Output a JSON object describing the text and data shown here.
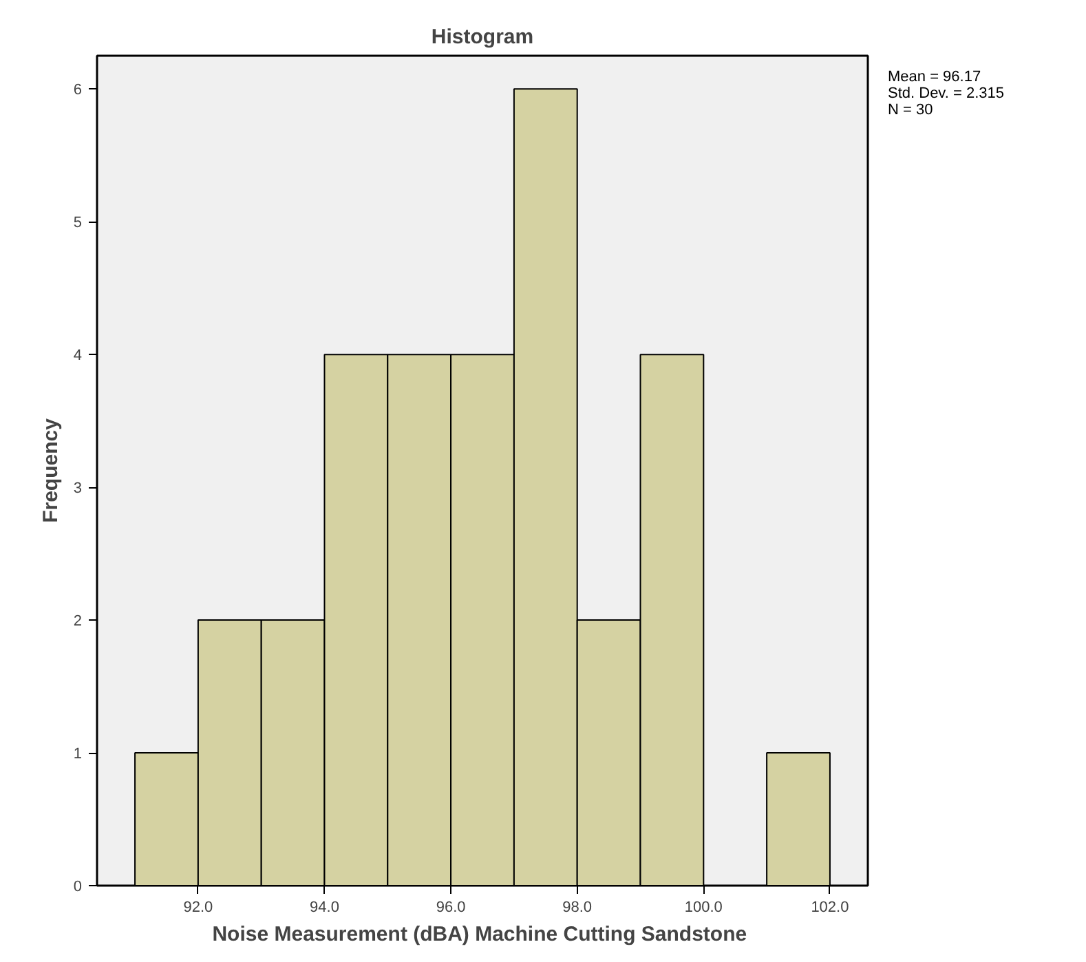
{
  "chart_data": {
    "type": "histogram",
    "title": "Histogram",
    "xlabel": "Noise Measurement (dBA) Machine Cutting  Sandstone",
    "ylabel": "Frequency",
    "bins": [
      91,
      92,
      93,
      94,
      95,
      96,
      97,
      98,
      99,
      100,
      101,
      102
    ],
    "values": [
      1,
      2,
      2,
      4,
      4,
      4,
      6,
      2,
      4,
      0,
      1
    ],
    "color": "#d5d2a2",
    "xlim": [
      90.4,
      102.6
    ],
    "ylim": [
      0,
      6.25
    ],
    "xticks": [
      {
        "value": 92,
        "label": "92.0"
      },
      {
        "value": 94,
        "label": "94.0"
      },
      {
        "value": 96,
        "label": "96.0"
      },
      {
        "value": 98,
        "label": "98.0"
      },
      {
        "value": 100,
        "label": "100.0"
      },
      {
        "value": 102,
        "label": "102.0"
      }
    ],
    "yticks": [
      0,
      1,
      2,
      3,
      4,
      5,
      6
    ],
    "grid": false,
    "annotations": [
      "Mean = 96.17\nStd. Dev. = 2.315\nN = 30"
    ]
  }
}
